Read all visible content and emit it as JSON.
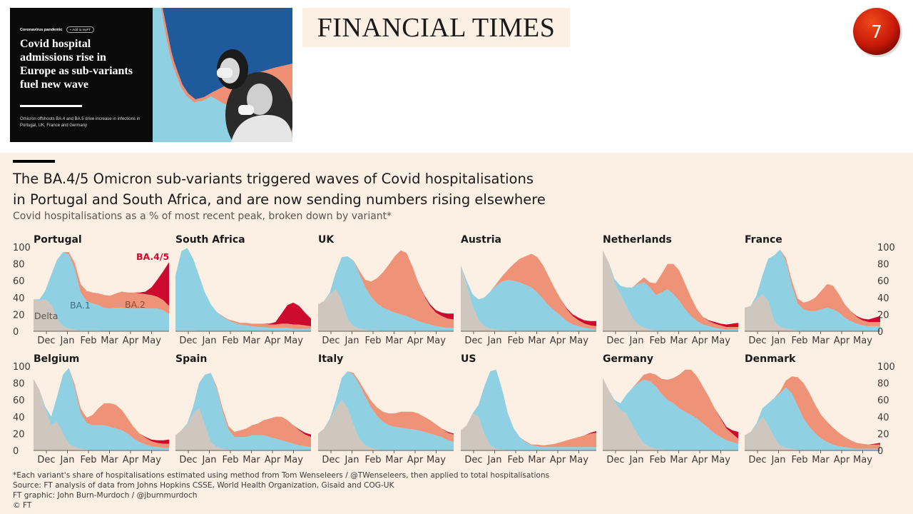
{
  "article": {
    "tag": "Coronavirus pandemic",
    "button": "+ Add to myFT",
    "headline_lines": [
      "Covid hospital",
      "admissions rise in",
      "Europe as sub-variants",
      "fuel new wave"
    ],
    "standfirst": "Omicron offshoots BA.4 and BA.5 drive increase in infections in Portugal, UK, France and Germany"
  },
  "logo": "FINANCIAL TIMES",
  "slide_number": "7",
  "chart": {
    "title_lines": [
      "The BA.4/5 Omicron sub-variants triggered waves of Covid hospitalisations",
      "in Portugal and South Africa, and are now sending numbers rising elsewhere"
    ],
    "subtitle": "Covid hospitalisations as a % of most recent peak, broken down by variant*",
    "footnotes": [
      "*Each variant's share of hospitalisations estimated using method from Tom Wenseleers / @TWenseleers, then applied to total hospitalisations",
      "Source: FT analysis of data from Johns Hopkins CSSE, World Health Organization, Gisaid and COG-UK",
      "FT graphic: John Burn-Murdoch / @jburnmurdoch",
      "© FT"
    ]
  },
  "colors": {
    "delta": "#cfc6be",
    "ba1": "#8fd0e3",
    "ba2": "#ee9377",
    "ba45": "#cc0a2e",
    "axis": "#66605c",
    "bg": "#fcefe3"
  },
  "chart_data": {
    "type": "area",
    "stacked": true,
    "x_labels": [
      "Dec",
      "Jan",
      "Feb",
      "Mar",
      "Apr",
      "May"
    ],
    "ylim": [
      0,
      100
    ],
    "y_ticks": [
      0,
      20,
      40,
      60,
      80,
      100
    ],
    "series_names": [
      "Delta",
      "BA.1",
      "BA.2",
      "BA.4/5"
    ],
    "annotations": {
      "Portugal": [
        "Delta",
        "BA.1",
        "BA.2",
        "BA.4/5"
      ]
    },
    "panels": [
      {
        "country": "Portugal",
        "delta": [
          38,
          36,
          38,
          32,
          15,
          6,
          3,
          2,
          1,
          1,
          1,
          1,
          0,
          0,
          0,
          0,
          0,
          0,
          0,
          0,
          0,
          0,
          0,
          0
        ],
        "ba1": [
          0,
          2,
          10,
          35,
          70,
          88,
          88,
          72,
          45,
          35,
          32,
          30,
          28,
          27,
          28,
          28,
          27,
          27,
          27,
          27,
          27,
          27,
          25,
          20
        ],
        "ba2": [
          0,
          0,
          0,
          0,
          0,
          0,
          3,
          7,
          10,
          12,
          13,
          14,
          15,
          15,
          17,
          19,
          19,
          19,
          18,
          17,
          16,
          14,
          12,
          10
        ],
        "ba45": [
          0,
          0,
          0,
          0,
          0,
          0,
          0,
          0,
          0,
          0,
          0,
          0,
          0,
          0,
          0,
          0,
          0,
          0,
          1,
          3,
          9,
          20,
          34,
          52
        ]
      },
      {
        "country": "South Africa",
        "delta": [
          1,
          1,
          1,
          1,
          0,
          0,
          0,
          0,
          0,
          0,
          0,
          0,
          0,
          0,
          0,
          0,
          0,
          0,
          0,
          0,
          0,
          0,
          0,
          0
        ],
        "ba1": [
          65,
          94,
          98,
          85,
          66,
          46,
          32,
          23,
          17,
          13,
          10,
          8,
          7,
          6,
          5,
          5,
          4,
          4,
          4,
          4,
          3,
          3,
          3,
          3
        ],
        "ba2": [
          0,
          0,
          0,
          0,
          0,
          0,
          0,
          0,
          1,
          1,
          2,
          2,
          3,
          3,
          4,
          4,
          4,
          4,
          5,
          5,
          5,
          5,
          4,
          3
        ],
        "ba45": [
          0,
          0,
          0,
          0,
          0,
          0,
          0,
          0,
          0,
          0,
          0,
          0,
          0,
          0,
          0,
          0,
          1,
          3,
          12,
          22,
          26,
          22,
          15,
          9
        ]
      },
      {
        "country": "UK",
        "delta": [
          32,
          36,
          44,
          50,
          36,
          14,
          6,
          3,
          2,
          1,
          1,
          0,
          0,
          0,
          0,
          0,
          0,
          0,
          0,
          0,
          0,
          0,
          0,
          0
        ],
        "ba1": [
          0,
          0,
          2,
          20,
          52,
          75,
          78,
          65,
          50,
          40,
          32,
          28,
          25,
          22,
          20,
          18,
          15,
          12,
          10,
          8,
          6,
          5,
          4,
          4
        ],
        "ba2": [
          0,
          0,
          0,
          0,
          0,
          0,
          0,
          4,
          9,
          18,
          30,
          42,
          54,
          67,
          76,
          75,
          62,
          46,
          32,
          22,
          16,
          13,
          11,
          10
        ],
        "ba45": [
          0,
          0,
          0,
          0,
          0,
          0,
          0,
          0,
          0,
          0,
          0,
          0,
          0,
          0,
          0,
          0,
          0,
          0,
          1,
          2,
          3,
          4,
          6,
          7
        ]
      },
      {
        "country": "Austria",
        "delta": [
          78,
          55,
          30,
          14,
          6,
          3,
          2,
          1,
          1,
          0,
          0,
          0,
          0,
          0,
          0,
          0,
          0,
          0,
          0,
          0,
          0,
          0,
          0,
          0
        ],
        "ba1": [
          0,
          5,
          14,
          24,
          34,
          44,
          52,
          58,
          60,
          60,
          58,
          55,
          52,
          46,
          38,
          30,
          24,
          18,
          12,
          8,
          6,
          4,
          3,
          2
        ],
        "ba2": [
          0,
          0,
          0,
          0,
          0,
          0,
          2,
          6,
          12,
          20,
          28,
          34,
          40,
          42,
          40,
          34,
          26,
          20,
          14,
          10,
          7,
          5,
          4,
          4
        ],
        "ba45": [
          0,
          0,
          0,
          0,
          0,
          0,
          0,
          0,
          0,
          0,
          0,
          0,
          0,
          0,
          0,
          0,
          0,
          0,
          1,
          2,
          3,
          4,
          5,
          6
        ]
      },
      {
        "country": "Netherlands",
        "delta": [
          96,
          82,
          58,
          44,
          30,
          16,
          8,
          4,
          2,
          1,
          0,
          0,
          0,
          0,
          0,
          0,
          0,
          0,
          0,
          0,
          0,
          0,
          0,
          0
        ],
        "ba1": [
          0,
          0,
          4,
          10,
          22,
          36,
          48,
          54,
          50,
          42,
          46,
          50,
          44,
          36,
          26,
          18,
          12,
          8,
          6,
          4,
          3,
          2,
          2,
          2
        ],
        "ba2": [
          0,
          0,
          0,
          0,
          0,
          0,
          2,
          6,
          6,
          14,
          22,
          30,
          36,
          36,
          30,
          22,
          14,
          9,
          6,
          5,
          4,
          3,
          3,
          3
        ],
        "ba45": [
          0,
          0,
          0,
          0,
          0,
          0,
          0,
          0,
          0,
          0,
          0,
          0,
          0,
          0,
          0,
          0,
          0,
          0,
          1,
          2,
          2,
          3,
          4,
          5
        ]
      },
      {
        "country": "France",
        "delta": [
          28,
          30,
          38,
          44,
          36,
          12,
          5,
          3,
          2,
          1,
          0,
          0,
          0,
          0,
          0,
          0,
          0,
          0,
          0,
          0,
          0,
          0,
          0,
          0
        ],
        "ba1": [
          0,
          0,
          4,
          22,
          50,
          78,
          92,
          80,
          52,
          32,
          26,
          24,
          24,
          26,
          28,
          26,
          22,
          16,
          12,
          9,
          7,
          6,
          6,
          6
        ],
        "ba2": [
          0,
          0,
          0,
          0,
          0,
          0,
          0,
          4,
          6,
          6,
          8,
          12,
          16,
          22,
          28,
          28,
          22,
          16,
          12,
          8,
          6,
          5,
          5,
          5
        ],
        "ba45": [
          0,
          0,
          0,
          0,
          0,
          0,
          0,
          0,
          0,
          0,
          0,
          0,
          0,
          0,
          0,
          0,
          0,
          0,
          0,
          1,
          2,
          3,
          5,
          7
        ]
      },
      {
        "country": "Belgium",
        "delta": [
          85,
          72,
          50,
          30,
          34,
          20,
          8,
          4,
          2,
          1,
          0,
          0,
          0,
          0,
          0,
          0,
          0,
          0,
          0,
          0,
          0,
          0,
          0,
          0
        ],
        "ba1": [
          0,
          0,
          2,
          10,
          30,
          70,
          90,
          70,
          42,
          32,
          30,
          30,
          30,
          28,
          26,
          24,
          20,
          14,
          10,
          7,
          5,
          4,
          3,
          3
        ],
        "ba2": [
          0,
          0,
          0,
          0,
          0,
          0,
          0,
          4,
          6,
          6,
          12,
          20,
          26,
          28,
          28,
          24,
          18,
          14,
          10,
          8,
          6,
          5,
          5,
          5
        ],
        "ba45": [
          0,
          0,
          0,
          0,
          0,
          0,
          0,
          0,
          0,
          0,
          0,
          0,
          0,
          0,
          0,
          0,
          0,
          0,
          0,
          1,
          2,
          3,
          4,
          5
        ]
      },
      {
        "country": "Spain",
        "delta": [
          18,
          24,
          30,
          44,
          50,
          30,
          10,
          4,
          2,
          1,
          0,
          0,
          0,
          0,
          0,
          0,
          0,
          0,
          0,
          0,
          0,
          0,
          0,
          0
        ],
        "ba1": [
          0,
          0,
          2,
          8,
          30,
          60,
          82,
          70,
          44,
          24,
          16,
          16,
          16,
          18,
          18,
          18,
          16,
          14,
          12,
          10,
          8,
          6,
          5,
          4
        ],
        "ba2": [
          0,
          0,
          0,
          0,
          0,
          0,
          0,
          2,
          4,
          4,
          6,
          8,
          10,
          12,
          14,
          18,
          22,
          26,
          28,
          26,
          22,
          18,
          14,
          12
        ],
        "ba45": [
          0,
          0,
          0,
          0,
          0,
          0,
          0,
          0,
          0,
          0,
          0,
          0,
          0,
          0,
          0,
          0,
          0,
          0,
          0,
          0,
          0,
          1,
          2,
          3
        ]
      },
      {
        "country": "Italy",
        "delta": [
          20,
          26,
          36,
          50,
          60,
          50,
          30,
          14,
          6,
          3,
          1,
          0,
          0,
          0,
          0,
          0,
          0,
          0,
          0,
          0,
          0,
          0,
          0,
          0
        ],
        "ba1": [
          0,
          0,
          2,
          10,
          26,
          44,
          60,
          64,
          58,
          48,
          40,
          34,
          30,
          28,
          27,
          26,
          25,
          24,
          22,
          20,
          18,
          16,
          12,
          10
        ],
        "ba2": [
          0,
          0,
          0,
          0,
          0,
          0,
          2,
          4,
          6,
          8,
          10,
          12,
          14,
          16,
          19,
          20,
          21,
          20,
          18,
          16,
          13,
          10,
          9,
          9
        ],
        "ba45": [
          0,
          0,
          0,
          0,
          0,
          0,
          0,
          0,
          0,
          0,
          0,
          0,
          0,
          0,
          0,
          0,
          0,
          0,
          0,
          0,
          0,
          0,
          1,
          1
        ]
      },
      {
        "country": "US",
        "delta": [
          24,
          30,
          44,
          40,
          20,
          6,
          2,
          1,
          0,
          0,
          0,
          0,
          0,
          0,
          0,
          0,
          0,
          0,
          0,
          0,
          0,
          0,
          0,
          0
        ],
        "ba1": [
          0,
          0,
          0,
          14,
          56,
          88,
          94,
          72,
          44,
          26,
          16,
          10,
          6,
          5,
          4,
          4,
          4,
          4,
          4,
          4,
          4,
          4,
          4,
          4
        ],
        "ba2": [
          0,
          0,
          0,
          0,
          0,
          0,
          0,
          0,
          0,
          0,
          0,
          1,
          1,
          2,
          2,
          3,
          4,
          6,
          8,
          10,
          12,
          14,
          16,
          17
        ],
        "ba45": [
          0,
          0,
          0,
          0,
          0,
          0,
          0,
          0,
          0,
          0,
          0,
          0,
          0,
          0,
          0,
          0,
          0,
          0,
          0,
          0,
          0,
          0,
          1,
          2
        ]
      },
      {
        "country": "Germany",
        "delta": [
          86,
          72,
          58,
          48,
          44,
          30,
          18,
          8,
          4,
          2,
          1,
          0,
          0,
          0,
          0,
          0,
          0,
          0,
          0,
          0,
          0,
          0,
          0,
          0
        ],
        "ba1": [
          0,
          0,
          2,
          8,
          22,
          44,
          62,
          76,
          78,
          74,
          66,
          60,
          56,
          50,
          46,
          42,
          38,
          32,
          26,
          20,
          16,
          12,
          10,
          8
        ],
        "ba2": [
          0,
          0,
          0,
          0,
          0,
          0,
          2,
          6,
          10,
          14,
          18,
          24,
          30,
          40,
          50,
          54,
          50,
          44,
          38,
          30,
          22,
          14,
          10,
          6
        ],
        "ba45": [
          0,
          0,
          0,
          0,
          0,
          0,
          0,
          0,
          0,
          0,
          0,
          0,
          0,
          0,
          0,
          0,
          0,
          0,
          0,
          0,
          1,
          2,
          4,
          8
        ]
      },
      {
        "country": "Denmark",
        "delta": [
          18,
          22,
          30,
          40,
          30,
          16,
          6,
          3,
          2,
          1,
          0,
          0,
          0,
          0,
          0,
          0,
          0,
          0,
          0,
          0,
          0,
          0,
          0,
          0
        ],
        "ba1": [
          0,
          0,
          2,
          10,
          26,
          46,
          62,
          72,
          66,
          52,
          38,
          28,
          20,
          14,
          10,
          7,
          5,
          4,
          3,
          2,
          2,
          2,
          2,
          2
        ],
        "ba2": [
          0,
          0,
          0,
          0,
          0,
          0,
          2,
          8,
          20,
          34,
          42,
          40,
          34,
          28,
          24,
          20,
          16,
          12,
          9,
          7,
          6,
          5,
          5,
          5
        ],
        "ba45": [
          0,
          0,
          0,
          0,
          0,
          0,
          0,
          0,
          0,
          0,
          0,
          0,
          0,
          0,
          0,
          0,
          0,
          0,
          0,
          0,
          0,
          0,
          1,
          2
        ]
      }
    ]
  }
}
